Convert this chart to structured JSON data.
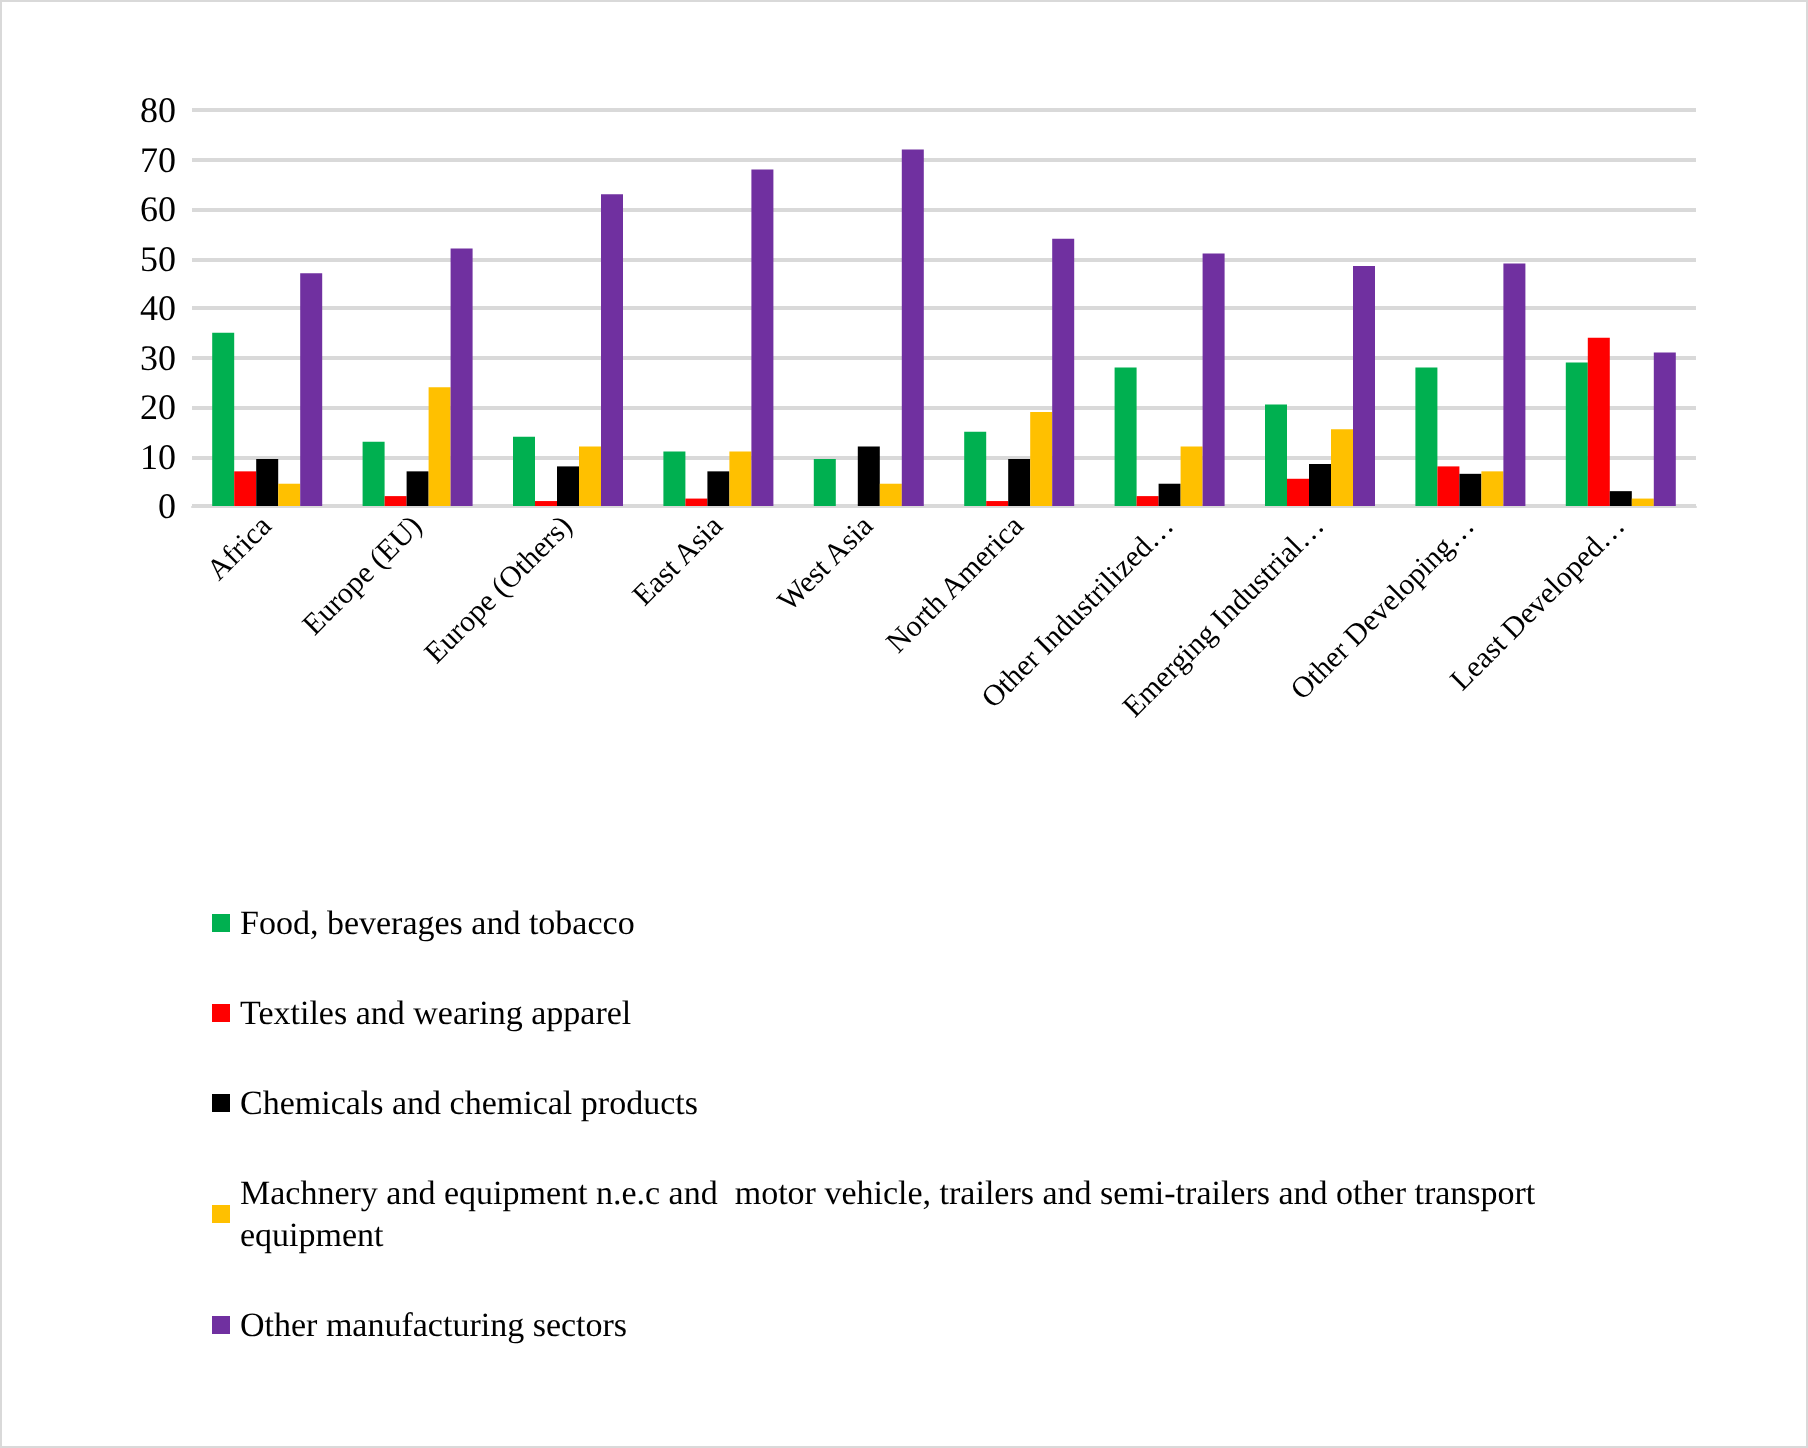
{
  "chart_data": {
    "type": "bar",
    "categories": [
      "Africa",
      "Europe (EU)",
      "Europe (Others)",
      "East Asia",
      "West Asia",
      "North America",
      "Other Industrilized…",
      "Emerging Industrial…",
      "Other Developing…",
      "Least Developed…"
    ],
    "series": [
      {
        "name": "Food, beverages and tobacco",
        "color": "#00b050",
        "values": [
          35,
          13,
          14,
          11,
          9.5,
          15,
          28,
          20.5,
          28,
          29
        ]
      },
      {
        "name": "Textiles and wearing apparel",
        "color": "#ff0000",
        "values": [
          7,
          2,
          1,
          1.5,
          0,
          1,
          2,
          5.5,
          8,
          34
        ]
      },
      {
        "name": "Chemicals and chemical products",
        "color": "#000000",
        "values": [
          9.5,
          7,
          8,
          7,
          12,
          9.5,
          4.5,
          8.5,
          6.5,
          3
        ]
      },
      {
        "name": "Machnery and equipment n.e.c and  motor vehicle, trailers and semi-trailers and other transport equipment",
        "color": "#ffc000",
        "values": [
          4.5,
          24,
          12,
          11,
          4.5,
          19,
          12,
          15.5,
          7,
          1.5
        ]
      },
      {
        "name": "Other manufacturing sectors",
        "color": "#7030a0",
        "values": [
          47,
          52,
          63,
          68,
          72,
          54,
          51,
          48.5,
          49,
          31
        ]
      }
    ],
    "ylim": [
      0,
      80
    ],
    "yticks": [
      0,
      10,
      20,
      30,
      40,
      50,
      60,
      70,
      80
    ],
    "grid": "y",
    "legend": "bottom"
  }
}
